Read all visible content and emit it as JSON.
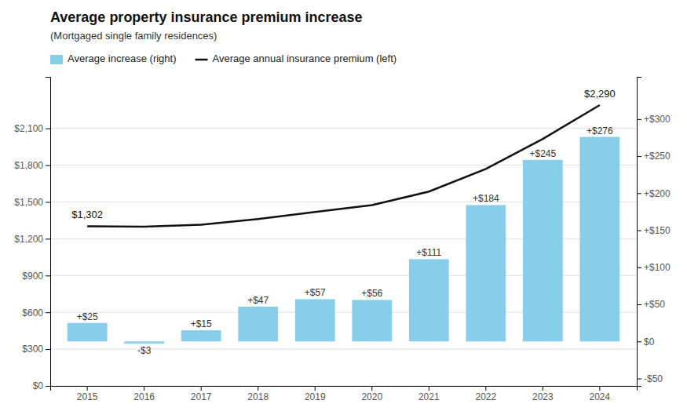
{
  "chart_data": {
    "type": "bar",
    "title": "Average property insurance premium increase",
    "subtitle": "(Mortgaged single family residences)",
    "categories": [
      "2015",
      "2016",
      "2017",
      "2018",
      "2019",
      "2020",
      "2021",
      "2022",
      "2023",
      "2024"
    ],
    "series": [
      {
        "name": "Average increase (right)",
        "type": "bar",
        "color": "#87CEEB",
        "axis": "y2",
        "values": [
          25,
          -3,
          15,
          47,
          57,
          56,
          111,
          184,
          245,
          276
        ],
        "value_labels": [
          "+$25",
          "-$3",
          "+$15",
          "+$47",
          "+$57",
          "+$56",
          "+$111",
          "+$184",
          "+$245",
          "+$276"
        ]
      },
      {
        "name": "Average annual insurance premium (left)",
        "type": "line",
        "color": "#111111",
        "values": [
          1302,
          1299,
          1314,
          1361,
          1418,
          1474,
          1585,
          1769,
          2014,
          2290
        ]
      }
    ],
    "ylim": [
      0,
      2520
    ],
    "yticks": [
      {
        "value": 0,
        "label": "$0"
      },
      {
        "value": 300,
        "label": "$300"
      },
      {
        "value": 600,
        "label": "$600"
      },
      {
        "value": 900,
        "label": "$900"
      },
      {
        "value": 1200,
        "label": "$1,200"
      },
      {
        "value": 1500,
        "label": "$1,500"
      },
      {
        "value": 1800,
        "label": "$1,800"
      },
      {
        "value": 2100,
        "label": "$2,100"
      }
    ],
    "y2lim": [
      -60,
      357
    ],
    "y2ticks": [
      {
        "value": -50,
        "label": "-$50"
      },
      {
        "value": 0,
        "label": "$0"
      },
      {
        "value": 50,
        "label": "+$50"
      },
      {
        "value": 100,
        "label": "+$100"
      },
      {
        "value": 150,
        "label": "+$150"
      },
      {
        "value": 200,
        "label": "+$200"
      },
      {
        "value": 250,
        "label": "+$250"
      },
      {
        "value": 300,
        "label": "+$300"
      }
    ],
    "annotations": [
      {
        "text": "$1,302",
        "x": "2015",
        "y": 1302
      },
      {
        "text": "$2,290",
        "x": "2024",
        "y": 2290
      }
    ],
    "grid": true,
    "legend": "upper left",
    "data_labels": true
  }
}
